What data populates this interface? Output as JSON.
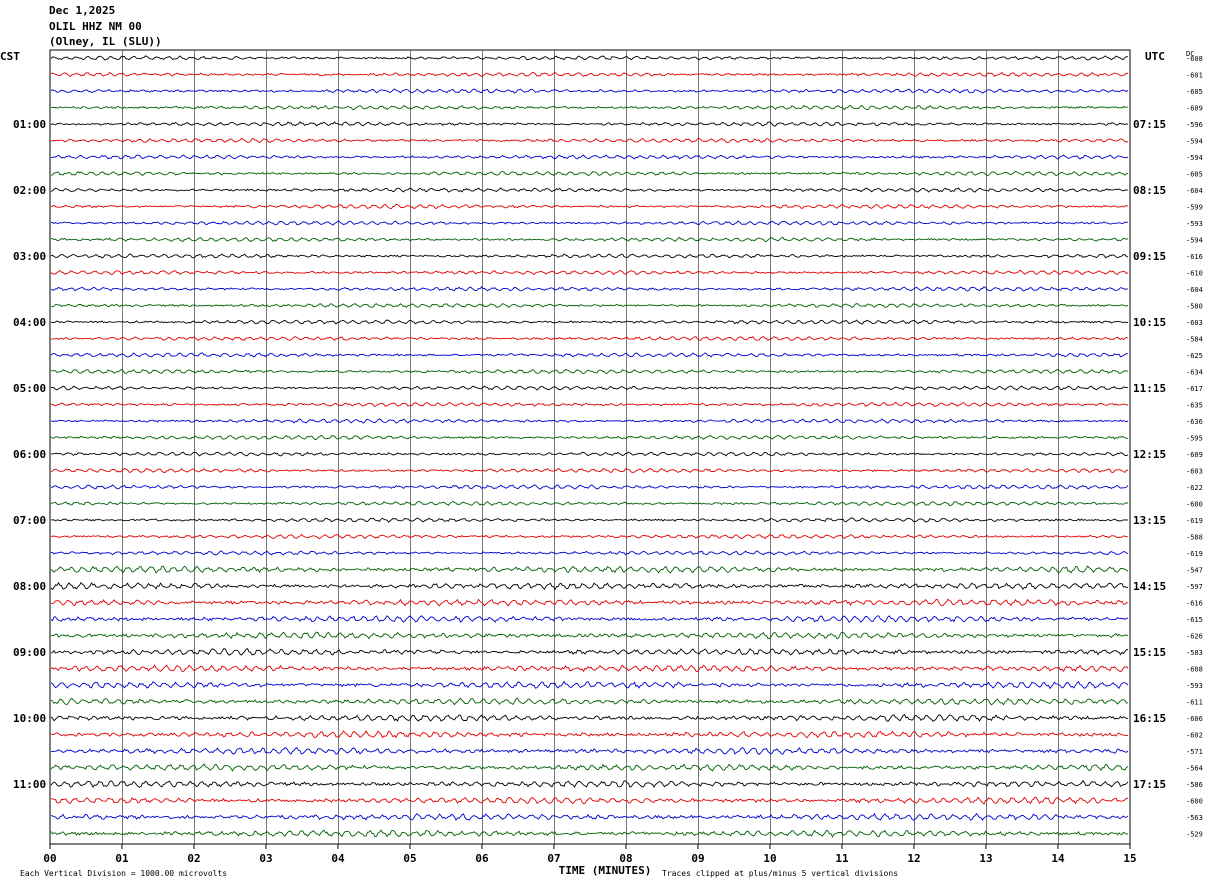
{
  "header": {
    "date": "Dec 1,2025",
    "station": "OLIL HHZ NM 00",
    "location": "(Olney, IL (SLU))"
  },
  "chart_data": {
    "type": "line",
    "title": "Dec 1,2025",
    "left_axis_label": "CST",
    "right_axis_label": "UTC",
    "dc_label": "DC",
    "xlabel": "TIME (MINUTES)",
    "x_ticks": [
      "00",
      "01",
      "02",
      "03",
      "04",
      "05",
      "06",
      "07",
      "08",
      "09",
      "10",
      "11",
      "12",
      "13",
      "14",
      "15"
    ],
    "xlim": [
      0,
      15
    ],
    "minutes_per_line": 15,
    "line_count": 48,
    "left_hour_labels": [
      "01:00",
      "02:00",
      "03:00",
      "04:00",
      "05:00",
      "06:00",
      "07:00",
      "08:00",
      "09:00",
      "10:00",
      "11:00"
    ],
    "right_hour_labels": [
      "07:15",
      "08:15",
      "09:15",
      "10:15",
      "11:15",
      "12:15",
      "13:15",
      "14:15",
      "15:15",
      "16:15",
      "17:15"
    ],
    "trace_colors": [
      "#000000",
      "#e00000",
      "#0000d0",
      "#006000"
    ],
    "dc_offsets": [
      "-608",
      "-601",
      "-605",
      "-609",
      "-596",
      "-594",
      "-594",
      "-605",
      "-604",
      "-599",
      "-593",
      "-594",
      "-616",
      "-610",
      "-604",
      "-580",
      "-603",
      "-584",
      "-625",
      "-634",
      "-617",
      "-635",
      "-636",
      "-595",
      "-609",
      "-603",
      "-622",
      "-600",
      "-619",
      "-588",
      "-619",
      "-547",
      "-597",
      "-616",
      "-615",
      "-626",
      "-583",
      "-608",
      "-593",
      "-611",
      "-606",
      "-602",
      "-571",
      "-564",
      "-586",
      "-600",
      "-563",
      "-529"
    ],
    "footer_left": "Each Vertical Division = 1000.00 microvolts",
    "footer_right": "Traces clipped at plus/minus 5 vertical divisions",
    "grid": true
  }
}
